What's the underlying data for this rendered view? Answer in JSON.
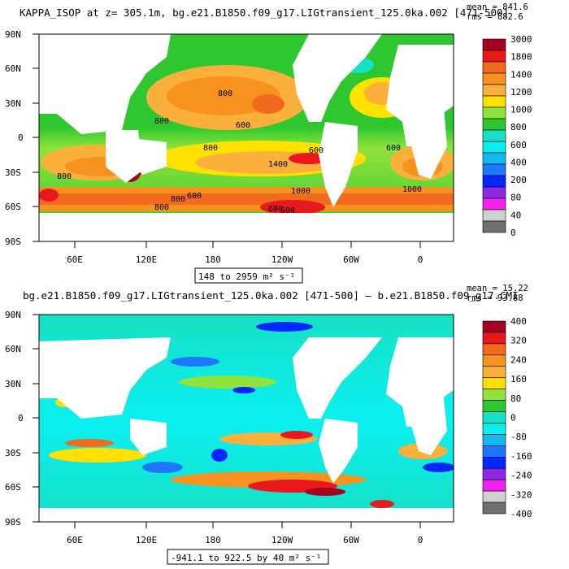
{
  "panels": [
    {
      "title": "KAPPA_ISOP at z= 305.1m, bg.e21.B1850.f09_g17.LIGtransient_125.0ka.002 [471-500]",
      "stats": {
        "mean": "mean = 841.6",
        "rms": "rms = 882.6"
      },
      "range": "148 to 2959 m² s⁻¹",
      "colorbar": {
        "labels": [
          "3000",
          "1800",
          "1400",
          "1200",
          "1000",
          "800",
          "600",
          "400",
          "200",
          "80",
          "40",
          "0"
        ],
        "colors": [
          "#a50021",
          "#e8181d",
          "#f26a1e",
          "#f7921f",
          "#fbb03b",
          "#ffe100",
          "#8fe33a",
          "#2ec72f",
          "#16e0c5",
          "#0af0f0",
          "#14b8f0",
          "#1e78ff",
          "#0028ff",
          "#8a2be2",
          "#f020f0",
          "#d0d0d0",
          "#707070"
        ]
      },
      "contour_labels": [
        "800",
        "800",
        "600",
        "800",
        "600",
        "1400",
        "800",
        "600",
        "600",
        "800",
        "800",
        "1000",
        "600",
        "1000",
        "600"
      ]
    },
    {
      "title": "bg.e21.B1850.f09_g17.LIGtransient_125.0ka.002 [471-500] – b.e21.B1850.f09_g17.CMI",
      "stats": {
        "mean": "mean = 15.22",
        "rms": "rms = 93.88"
      },
      "range": "-941.1 to 922.5 by 40 m² s⁻¹",
      "colorbar": {
        "labels": [
          "400",
          "320",
          "240",
          "160",
          "80",
          "0",
          "-80",
          "-160",
          "-240",
          "-320",
          "-400"
        ],
        "colors": [
          "#a50021",
          "#e8181d",
          "#f26a1e",
          "#f7921f",
          "#fbb03b",
          "#ffe100",
          "#8fe33a",
          "#2ec72f",
          "#16e0c5",
          "#0af0f0",
          "#14b8f0",
          "#1e78ff",
          "#0028ff",
          "#8a2be2",
          "#f020f0",
          "#d0d0d0",
          "#707070"
        ]
      }
    }
  ],
  "axes": {
    "y_ticks": [
      "90N",
      "60N",
      "30N",
      "0",
      "30S",
      "60S",
      "90S"
    ],
    "x_ticks": [
      "60E",
      "120E",
      "180",
      "120W",
      "60W",
      "0"
    ]
  }
}
